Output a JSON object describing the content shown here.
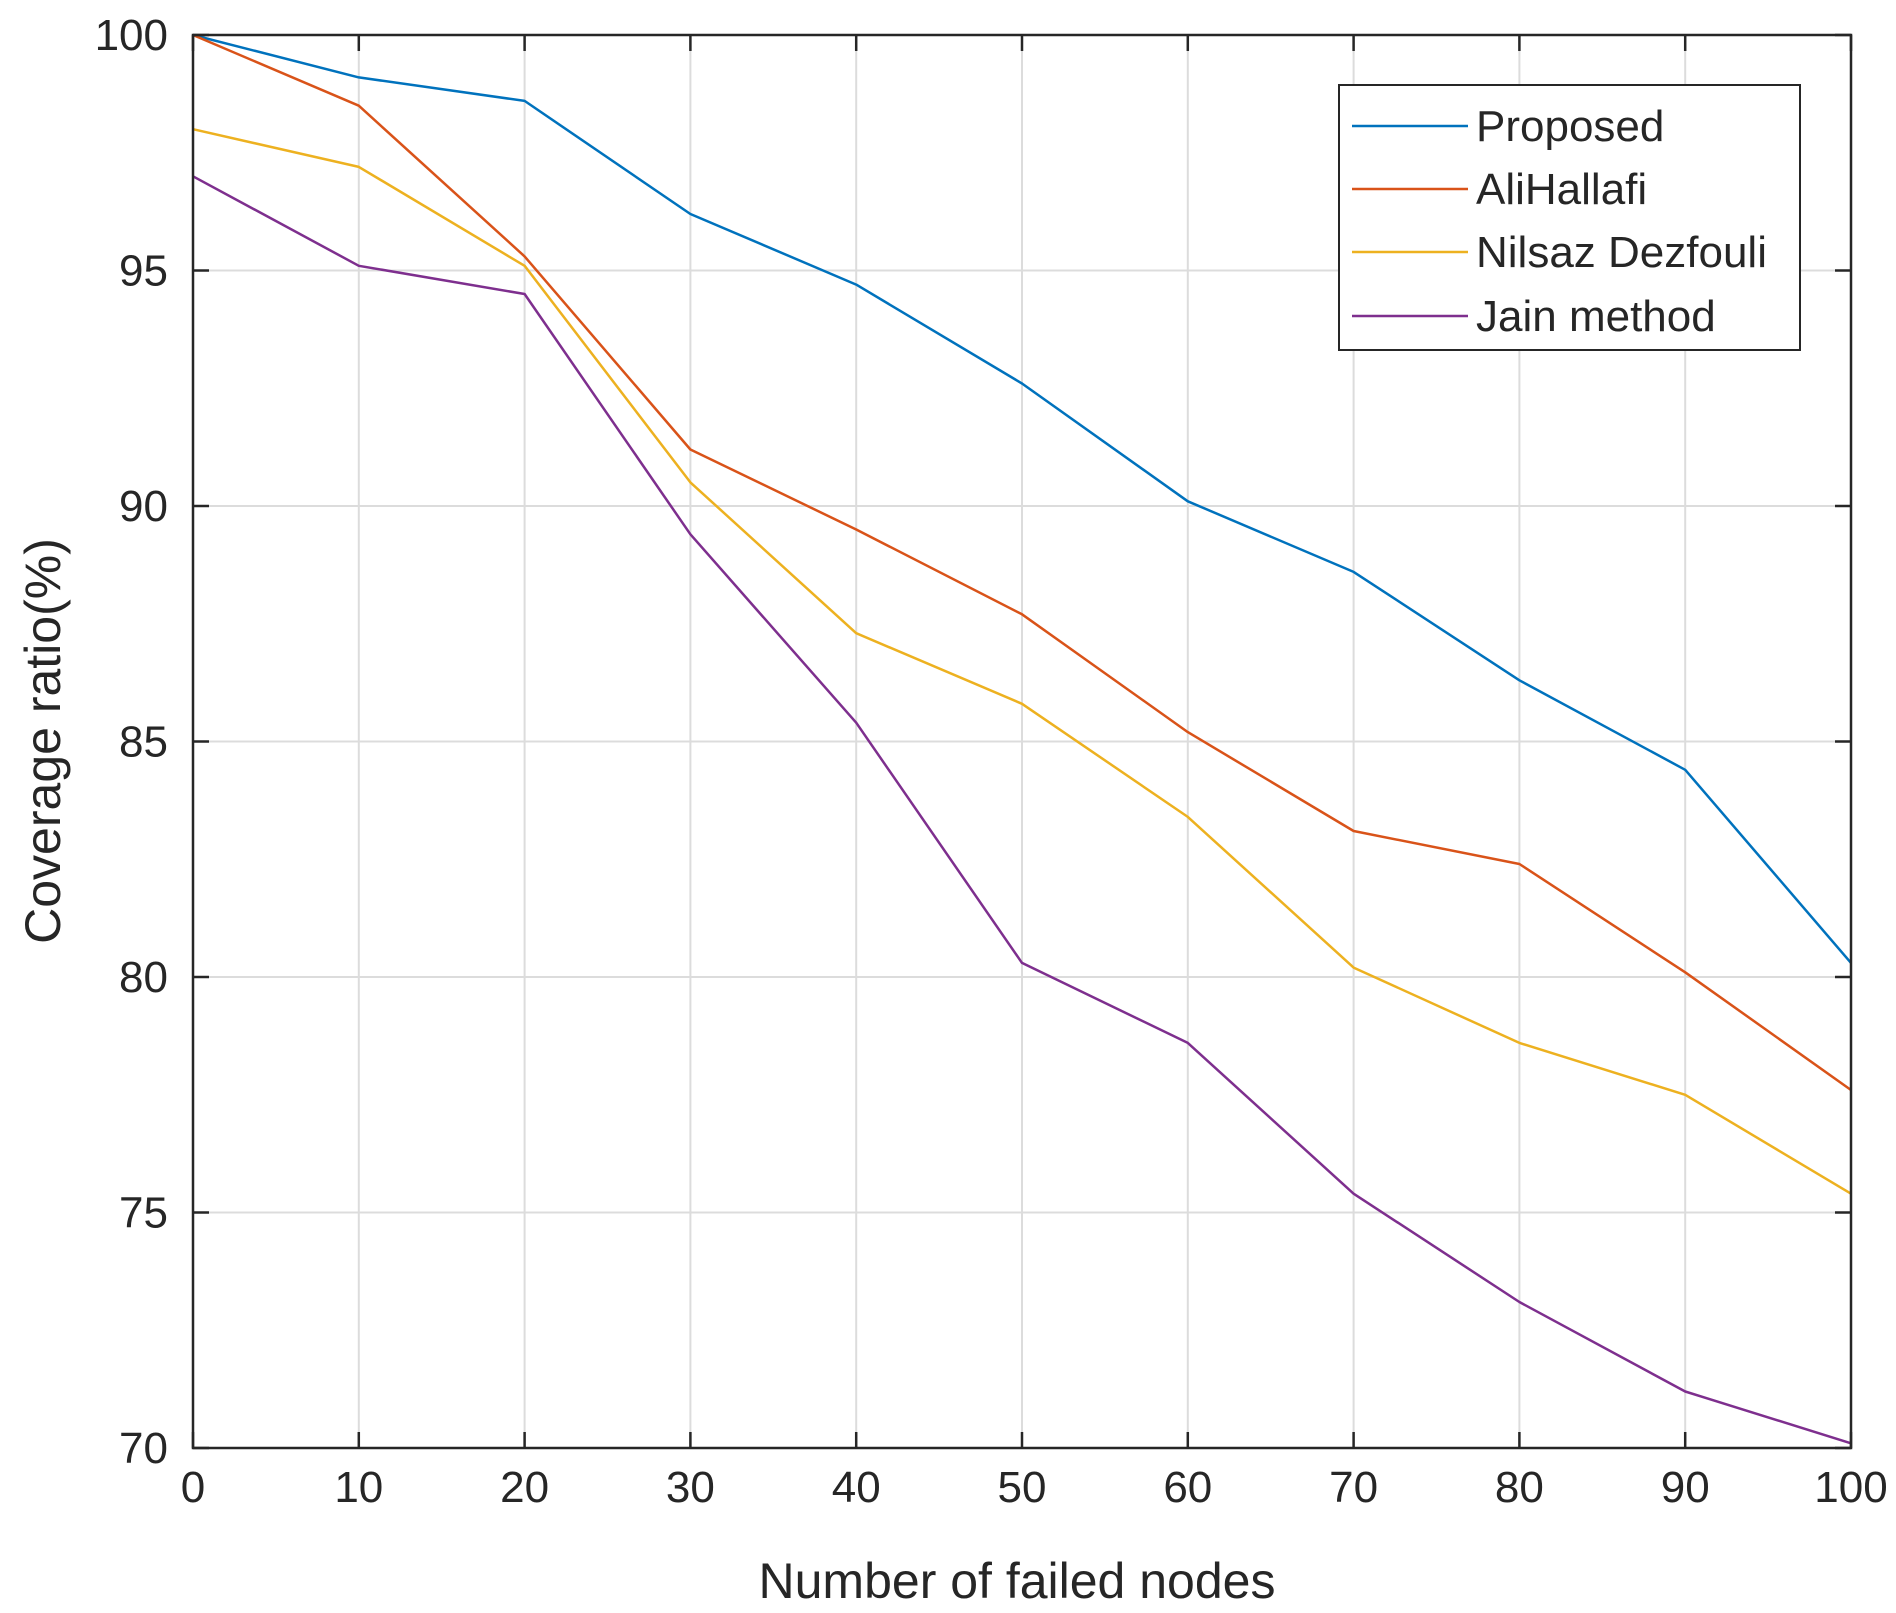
{
  "chart_data": {
    "type": "line",
    "title": "",
    "xlabel": "Number of failed nodes",
    "ylabel": "Coverage ratio(%)",
    "xlim": [
      0,
      100
    ],
    "ylim": [
      70,
      100
    ],
    "grid": true,
    "legend_position": "top-right",
    "x": [
      0,
      10,
      20,
      30,
      40,
      50,
      60,
      70,
      80,
      90,
      100
    ],
    "x_ticks": [
      "0",
      "10",
      "20",
      "30",
      "40",
      "50",
      "60",
      "70",
      "80",
      "90",
      "100"
    ],
    "y_ticks": [
      "70",
      "75",
      "80",
      "85",
      "90",
      "95",
      "100"
    ],
    "series": [
      {
        "name": "Proposed",
        "color": "#0072BD",
        "values": [
          100,
          99.1,
          98.6,
          96.2,
          94.7,
          92.6,
          90.1,
          88.6,
          86.3,
          84.4,
          80.3
        ]
      },
      {
        "name": "AliHallafi",
        "color": "#D95319",
        "values": [
          100,
          98.5,
          95.3,
          91.2,
          89.5,
          87.7,
          85.2,
          83.1,
          82.4,
          80.1,
          77.6
        ]
      },
      {
        "name": "Nilsaz Dezfouli",
        "color": "#EDB120",
        "values": [
          98.0,
          97.2,
          95.1,
          90.5,
          87.3,
          85.8,
          83.4,
          80.2,
          78.6,
          77.5,
          75.4
        ]
      },
      {
        "name": "Jain method",
        "color": "#7E2F8E",
        "values": [
          97.0,
          95.1,
          94.5,
          89.4,
          85.4,
          80.3,
          78.6,
          75.4,
          73.1,
          71.2,
          70.1
        ]
      }
    ]
  }
}
